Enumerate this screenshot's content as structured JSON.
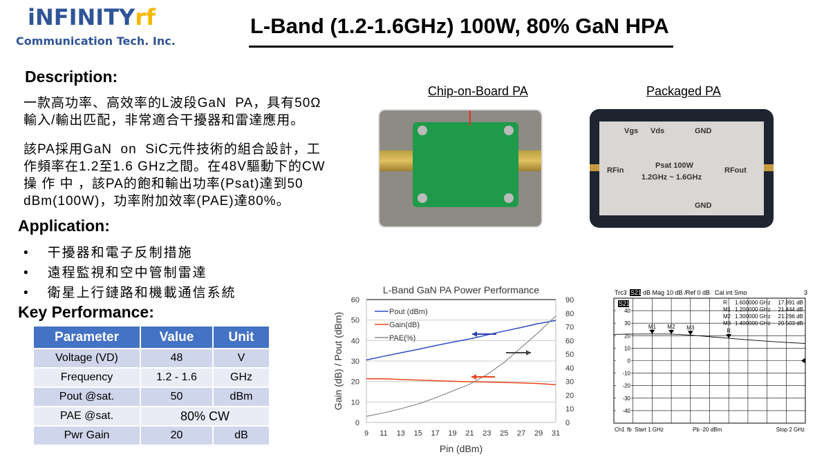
{
  "logo": {
    "brand_main": "iNFINITY",
    "brand_suffix": "rf",
    "tagline": "Communication Tech. Inc."
  },
  "title": "L-Band (1.2-1.6GHz) 100W, 80% GaN HPA",
  "description": {
    "heading": "Description:",
    "para1_line1": "一款高功率、高效率的L波段GaN  PA，具有50Ω",
    "para1_line2": "輸入/輸出匹配，非常適合干擾器和雷達應用。",
    "para2_line1": "該PA採用GaN  on  SiC元件技術的組合設計，工",
    "para2_line2": "作頻率在1.2至1.6 GHz之間。在48V驅動下的CW",
    "para2_line3": "操 作 中 ，該PA的飽和輸出功率(Psat)達到50",
    "para2_line4": "dBm(100W)，功率附加效率(PAE)達80%。"
  },
  "application": {
    "heading": "Application:",
    "items": [
      "干擾器和電子反制措施",
      "遠程監視和空中管制雷達",
      "衛星上行鏈路和機載通信系統"
    ]
  },
  "key_performance": {
    "heading": "Key Performance:",
    "columns": [
      "Parameter",
      "Value",
      "Unit"
    ],
    "rows": [
      [
        "Voltage (VD)",
        "48",
        "V"
      ],
      [
        "Frequency",
        "1.2 - 1.6",
        "GHz"
      ],
      [
        "Pout @sat.",
        "50",
        "dBm"
      ],
      [
        "PAE @sat.",
        "80% CW",
        ""
      ],
      [
        "Pwr Gain",
        "20",
        "dB"
      ]
    ]
  },
  "photos": {
    "cob_caption": "Chip-on-Board PA",
    "pkg_caption": "Packaged PA",
    "pkg_labels": {
      "vgs": "Vgs",
      "vds": "Vds",
      "gnd_top": "GND",
      "rfin": "RFin",
      "rfout": "RFout",
      "psat": "Psat 100W",
      "freq": "1.2GHz ~ 1.6GHz",
      "gnd_bottom": "GND"
    }
  },
  "chart_data": [
    {
      "type": "line",
      "title": "L-Band GaN PA Power Performance",
      "xlabel": "Pin (dBm)",
      "ylabel": "Gain (dB) / Pout (dBm)",
      "y2label": "PAE (%)",
      "x": [
        9,
        11,
        13,
        15,
        17,
        19,
        21,
        23,
        25,
        27,
        29,
        31
      ],
      "xlim": [
        9,
        31
      ],
      "xticks": [
        9,
        11,
        13,
        15,
        17,
        19,
        21,
        23,
        25,
        27,
        29,
        31
      ],
      "ylim": [
        0,
        60
      ],
      "yticks": [
        0,
        10,
        20,
        30,
        40,
        50,
        60
      ],
      "y2lim": [
        0,
        90
      ],
      "y2ticks": [
        0,
        10,
        20,
        30,
        40,
        50,
        60,
        70,
        80,
        90
      ],
      "legend_position": "top-left",
      "grid": true,
      "series": [
        {
          "name": "Pout (dBm)",
          "axis": "left",
          "color": "#2e4bc6",
          "values": [
            30.5,
            32.3,
            34,
            35.7,
            37.5,
            39.2,
            40.8,
            42.7,
            44.6,
            46.4,
            48.3,
            49.8
          ]
        },
        {
          "name": "Gain(dB)",
          "axis": "left",
          "color": "#e8431b",
          "values": [
            21.3,
            21.3,
            21,
            20.7,
            20.4,
            20.1,
            19.9,
            19.7,
            19.5,
            19.3,
            19,
            18.4
          ]
        },
        {
          "name": "PAE(%)",
          "axis": "right",
          "color": "#888888",
          "values": [
            4.5,
            7,
            10,
            13.5,
            18,
            23,
            28,
            35,
            44,
            55,
            66,
            78
          ]
        }
      ]
    },
    {
      "type": "line",
      "header": {
        "trace": "Trc3",
        "param": "S21",
        "format": "dB Mag",
        "scale": "10 dB /",
        "ref": "Ref 0 dB",
        "cal": "Cal int Smo",
        "num": "3"
      },
      "trace_label": "S21",
      "yticks": [
        40,
        30,
        20,
        10,
        0,
        -10,
        -20,
        -30,
        -40
      ],
      "ylim": [
        -50,
        50
      ],
      "xlim": [
        1,
        2
      ],
      "x": [
        1.0,
        1.1,
        1.2,
        1.3,
        1.4,
        1.5,
        1.6,
        1.7,
        1.8,
        1.9,
        2.0
      ],
      "values": [
        21.0,
        21.3,
        21.4,
        21.3,
        20.5,
        19.2,
        17.9,
        16.7,
        15.6,
        14.6,
        13.8
      ],
      "markers": [
        {
          "name": "R",
          "freq": "1.600000 GHz",
          "value": "17.891 dB",
          "x": 1.6,
          "y": 17.9
        },
        {
          "name": "M1",
          "freq": "1.200000 GHz",
          "value": "21.444 dB",
          "x": 1.2,
          "y": 21.4
        },
        {
          "name": "M2",
          "freq": "1.300000 GHz",
          "value": "21.296 dB",
          "x": 1.3,
          "y": 21.3
        },
        {
          "name": "M3",
          "freq": "1.400000 GHz",
          "value": "20.503 dB",
          "x": 1.4,
          "y": 20.5
        }
      ],
      "footer": {
        "ch": "Ch1",
        "fb": "fb",
        "start": "Start  1 GHz",
        "power": "Pb   -20 dBm",
        "stop": "Stop  2 GHz"
      }
    }
  ]
}
